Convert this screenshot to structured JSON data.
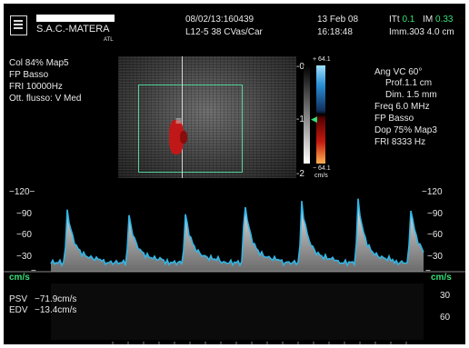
{
  "header": {
    "center_name": "S.A.C.-MATERA",
    "brand": "ATL",
    "study_id": "08/02/13:160439",
    "probe_preset": "L12-5 38 CVas/Car",
    "date": "13 Feb 08",
    "time": "16:18:48",
    "it_label": "ITt",
    "it_value": "0.1",
    "im_label": "IM",
    "im_value": "0.33",
    "image_info": "Imm.303 4.0 cm"
  },
  "color_settings": {
    "col": "Col 84%  Map5",
    "filter": "FP Basso",
    "fri": "FRI 10000Hz",
    "opt": "Ott. flusso: V Med"
  },
  "depth_scale": {
    "labels": [
      "-0",
      "-1",
      "-2"
    ]
  },
  "color_bar": {
    "top": "+ 64.1",
    "bottom": "− 64.1",
    "unit": "cm/s",
    "colors": [
      "#9fdfff",
      "#2a8fd6",
      "#000000",
      "#c41b10",
      "#ffb050"
    ]
  },
  "doppler_settings": {
    "angle": "Ang VC 60°",
    "depth": "Prof.1.1  cm",
    "gate": "Dim. 1.5  mm",
    "freq": "Freq 6.0  MHz",
    "filter": "FP Basso",
    "dop": "Dop 75%  Map3",
    "fri": "FRI 8333  Hz"
  },
  "spectral": {
    "scale_labels": [
      "−120−",
      "−90",
      "−60",
      "−30",
      "−"
    ],
    "right_labels": [
      "−120",
      "−90",
      "−60",
      "−30",
      "−"
    ],
    "bottom_right_labels": [
      "30",
      "60"
    ],
    "unit": "cm/s",
    "envelope_color": "#33b5e5",
    "psv_label": "PSV",
    "psv_value": "−71.9cm/s",
    "edv_label": "EDV",
    "edv_value": "−13.4cm/s"
  }
}
